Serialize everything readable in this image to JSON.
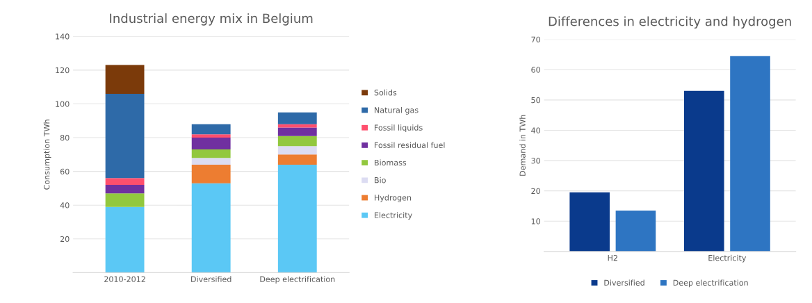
{
  "chart_data": [
    {
      "type": "bar",
      "title": "Industrial energy mix in Belgium",
      "ylabel": "Consumption TWh",
      "categories": [
        "2010-2012",
        "Diversified",
        "Deep electrification"
      ],
      "stacked": true,
      "ylim": [
        0,
        140
      ],
      "yticks": [
        20,
        40,
        60,
        80,
        100,
        120,
        140
      ],
      "grid": "y",
      "legend": "right",
      "series": [
        {
          "name": "Electricity",
          "color": "#5bc8f5",
          "values": [
            39,
            53,
            64
          ]
        },
        {
          "name": "Hydrogen",
          "color": "#ed7d31",
          "values": [
            null,
            11,
            6
          ]
        },
        {
          "name": "Bio",
          "color": "#dcdcf2",
          "values": [
            null,
            4,
            5
          ]
        },
        {
          "name": "Biomass",
          "color": "#92c83e",
          "values": [
            8,
            5,
            6
          ]
        },
        {
          "name": "Fossil residual fuel",
          "color": "#7030a0",
          "values": [
            5,
            7,
            5
          ]
        },
        {
          "name": "Fossil liquids",
          "color": "#ff4f6d",
          "values": [
            4,
            2,
            2
          ]
        },
        {
          "name": "Natural gas",
          "color": "#2e6aa8",
          "values": [
            50,
            6,
            7
          ]
        },
        {
          "name": "Solids",
          "color": "#7b3a0a",
          "values": [
            17,
            null,
            null
          ]
        }
      ]
    },
    {
      "type": "bar",
      "title": "Differences in electricity and hydrogen",
      "ylabel": "Demand in TWh",
      "categories": [
        "H2",
        "Electricity"
      ],
      "ylim": [
        0,
        70
      ],
      "yticks": [
        10,
        20,
        30,
        40,
        50,
        60,
        70
      ],
      "grid": "y",
      "legend": "bottom",
      "series": [
        {
          "name": "Diversified",
          "color": "#0a3a8c",
          "values": [
            19.5,
            53
          ]
        },
        {
          "name": "Deep electrification",
          "color": "#2e75c2",
          "values": [
            13.5,
            64.5
          ]
        }
      ]
    }
  ]
}
